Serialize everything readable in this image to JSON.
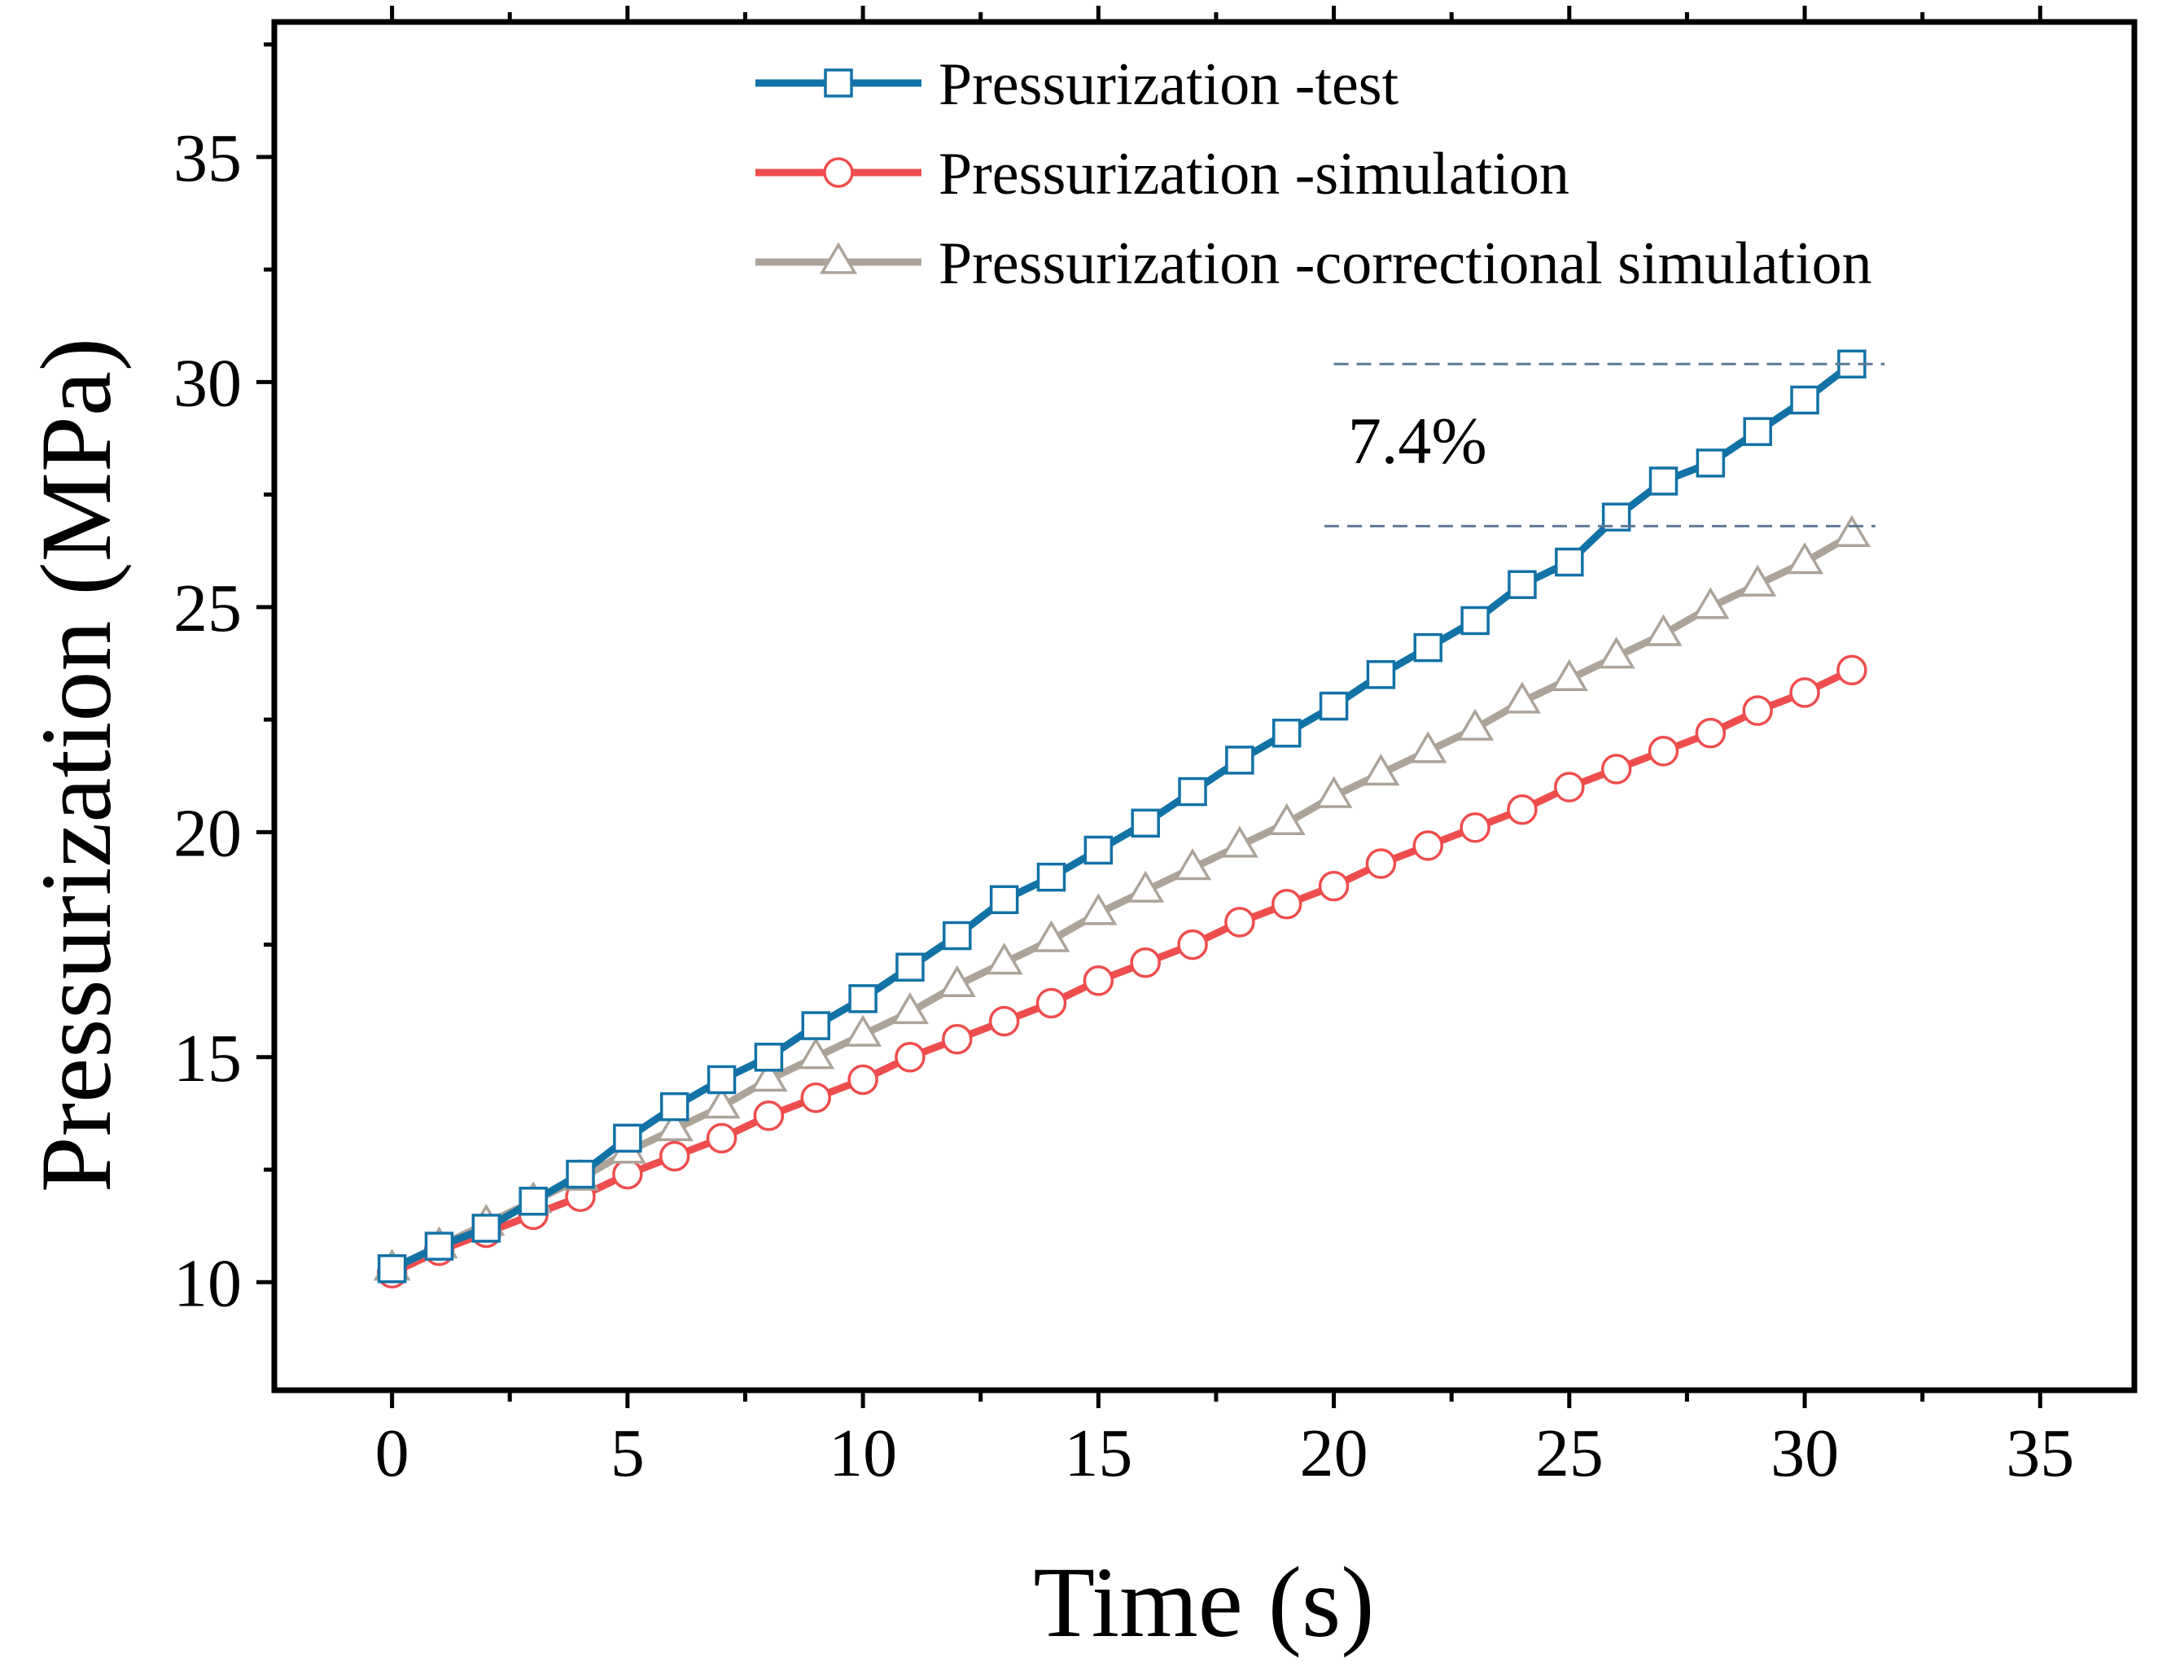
{
  "chart_data": {
    "type": "line",
    "xlabel": "Time (s)",
    "ylabel": "Pressurization (MPa)",
    "xlim": [
      -2.5,
      37
    ],
    "ylim": [
      7.6,
      38
    ],
    "xticks": [
      0,
      5,
      10,
      15,
      20,
      25,
      30,
      35
    ],
    "yticks": [
      10,
      15,
      20,
      25,
      30,
      35
    ],
    "legend_position": "top-right",
    "grid": false,
    "series": [
      {
        "name": "Pressurization -test",
        "marker": "square",
        "color": "#1272a6",
        "x": [
          0,
          1,
          2,
          3,
          4,
          5,
          6,
          7,
          8,
          9,
          10,
          11,
          12,
          13,
          14,
          15,
          16,
          17,
          18,
          19,
          20,
          21,
          22,
          23,
          24,
          25,
          26,
          27,
          28,
          29,
          30,
          31
        ],
        "values": [
          10.3,
          10.8,
          11.2,
          11.8,
          12.4,
          13.2,
          13.9,
          14.5,
          15.0,
          15.7,
          16.3,
          17.0,
          17.7,
          18.5,
          19.0,
          19.6,
          20.2,
          20.9,
          21.6,
          22.2,
          22.8,
          23.5,
          24.1,
          24.7,
          25.5,
          26.0,
          27.0,
          27.8,
          28.2,
          28.9,
          29.6,
          30.4
        ]
      },
      {
        "name": "Pressurization -simulation",
        "marker": "circle",
        "color": "#ee4d4d",
        "x": [
          0,
          1,
          2,
          3,
          4,
          5,
          6,
          7,
          8,
          9,
          10,
          11,
          12,
          13,
          14,
          15,
          16,
          17,
          18,
          19,
          20,
          21,
          22,
          23,
          24,
          25,
          26,
          27,
          28,
          29,
          30,
          31
        ],
        "values": [
          10.2,
          10.7,
          11.1,
          11.5,
          11.9,
          12.4,
          12.8,
          13.2,
          13.7,
          14.1,
          14.5,
          15.0,
          15.4,
          15.8,
          16.2,
          16.7,
          17.1,
          17.5,
          18.0,
          18.4,
          18.8,
          19.3,
          19.7,
          20.1,
          20.5,
          21.0,
          21.4,
          21.8,
          22.2,
          22.7,
          23.1,
          23.6
        ]
      },
      {
        "name": "Pressurization -correctional simulation",
        "marker": "triangle",
        "color": "#aca399",
        "x": [
          0,
          1,
          2,
          3,
          4,
          5,
          6,
          7,
          8,
          9,
          10,
          11,
          12,
          13,
          14,
          15,
          16,
          17,
          18,
          19,
          20,
          21,
          22,
          23,
          24,
          25,
          26,
          27,
          28,
          29,
          30,
          31
        ],
        "values": [
          10.3,
          10.8,
          11.3,
          11.8,
          12.3,
          12.9,
          13.4,
          13.9,
          14.5,
          15.0,
          15.5,
          16.0,
          16.6,
          17.1,
          17.6,
          18.2,
          18.7,
          19.2,
          19.7,
          20.2,
          20.8,
          21.3,
          21.8,
          22.3,
          22.9,
          23.4,
          23.9,
          24.4,
          25.0,
          25.5,
          26.0,
          26.6
        ]
      }
    ],
    "annotations": [
      {
        "text": "7.4%",
        "x": 20.3,
        "y": 28.2,
        "reference_lines": [
          {
            "y": 30.4,
            "x_start": 20,
            "x_end": 31.7
          },
          {
            "y": 26.8,
            "x_start": 19.8,
            "x_end": 31.5
          }
        ],
        "line_color": "#5d7a96"
      }
    ]
  }
}
